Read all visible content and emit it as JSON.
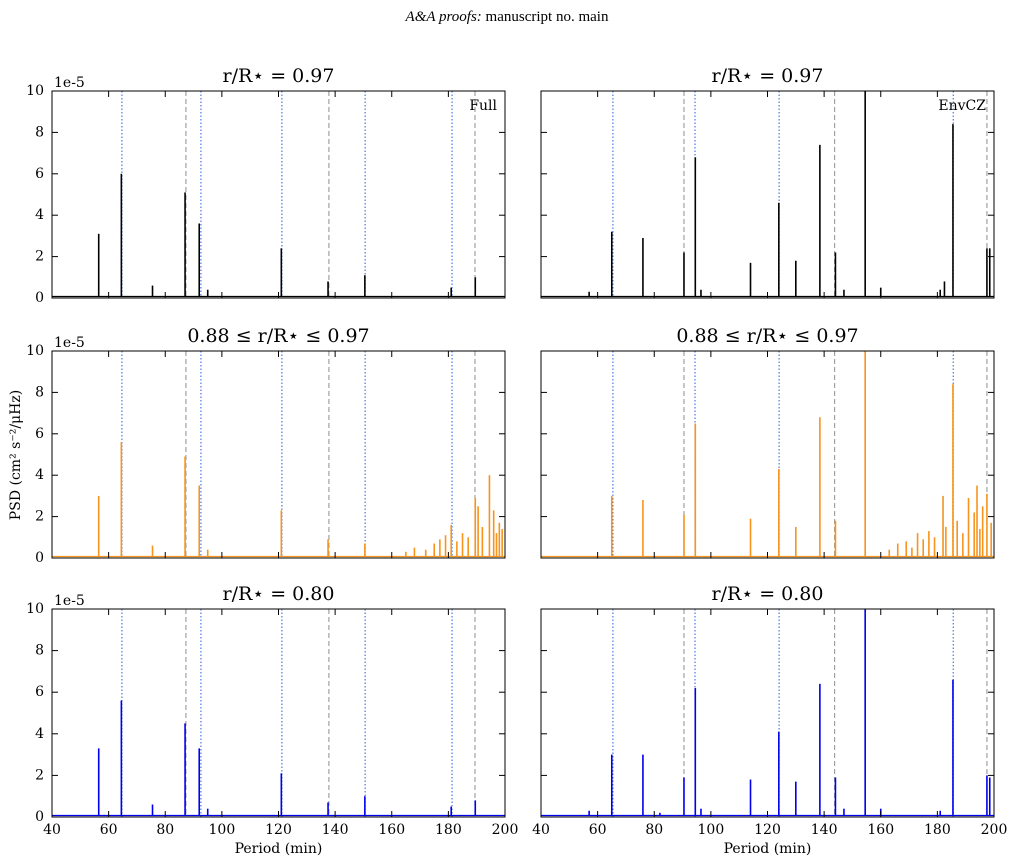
{
  "header": {
    "journal": "A&A proofs:",
    "text": "manuscript no. main"
  },
  "ylabel": "PSD (cm² s⁻²/μHz)",
  "chart_data": [
    {
      "type": "stem",
      "title": "r/R⋆ = 0.97",
      "annotation": "Full",
      "offset_text": "1e-5",
      "xlim": [
        40,
        200
      ],
      "xticks": [
        40,
        60,
        80,
        100,
        120,
        140,
        160,
        180,
        200
      ],
      "ylim": [
        0,
        10
      ],
      "yticks": [
        0,
        2,
        4,
        6,
        8,
        10
      ],
      "dotted_lines": {
        "color": "#3a6ee0",
        "x": [
          64.7,
          92.6,
          121.2,
          150.6,
          181.3
        ]
      },
      "dashed_lines": {
        "color": "#999999",
        "x": [
          87.3,
          137.8,
          189.4
        ]
      },
      "series": [
        {
          "color": "#000000",
          "x": [
            56.5,
            64.5,
            75.5,
            87,
            92,
            95,
            121,
            137.5,
            150.5,
            181,
            189.5
          ],
          "values": [
            3.1,
            6.0,
            0.6,
            5.1,
            3.6,
            0.4,
            2.4,
            0.8,
            1.1,
            0.5,
            1.0
          ]
        }
      ]
    },
    {
      "type": "stem",
      "title": "r/R⋆ = 0.97",
      "annotation": "EnvCZ",
      "xlim": [
        40,
        200
      ],
      "xticks": [
        40,
        60,
        80,
        100,
        120,
        140,
        160,
        180,
        200
      ],
      "ylim": [
        0,
        10
      ],
      "yticks": [
        0,
        2,
        4,
        6,
        8,
        10
      ],
      "dotted_lines": {
        "color": "#3a6ee0",
        "x": [
          65.4,
          94.4,
          124.1,
          185.6
        ]
      },
      "dashed_lines": {
        "color": "#999999",
        "x": [
          90.5,
          143.7,
          197.5
        ]
      },
      "series": [
        {
          "color": "#000000",
          "x": [
            57,
            65,
            76,
            90.5,
            94.5,
            96.5,
            114,
            124,
            130,
            138.5,
            144,
            147,
            154.5,
            160,
            181,
            182.5,
            185.5,
            197.5,
            198.5
          ],
          "values": [
            0.3,
            3.2,
            2.9,
            2.2,
            6.8,
            0.4,
            1.7,
            4.6,
            1.8,
            7.4,
            2.2,
            0.4,
            10,
            0.5,
            0.4,
            0.8,
            8.4,
            2.4,
            2.4
          ]
        }
      ]
    },
    {
      "type": "stem",
      "title": "0.88 ≤ r/R⋆ ≤ 0.97",
      "offset_text": "1e-5",
      "xlim": [
        40,
        200
      ],
      "xticks": [
        40,
        60,
        80,
        100,
        120,
        140,
        160,
        180,
        200
      ],
      "ylim": [
        0,
        10
      ],
      "yticks": [
        0,
        2,
        4,
        6,
        8,
        10
      ],
      "dotted_lines": {
        "color": "#3a6ee0",
        "x": [
          64.7,
          92.6,
          121.2,
          150.6,
          181.3
        ]
      },
      "dashed_lines": {
        "color": "#999999",
        "x": [
          87.3,
          137.8,
          189.4
        ]
      },
      "series": [
        {
          "color": "#f7941d",
          "x": [
            56.5,
            64.5,
            75.5,
            87,
            92,
            95,
            121,
            137.5,
            150.5,
            165,
            168,
            172,
            175,
            177,
            179,
            181,
            183,
            185,
            187,
            189.5,
            190.5,
            192,
            194.5,
            196,
            197,
            198,
            199
          ],
          "values": [
            3.0,
            5.6,
            0.6,
            4.9,
            3.5,
            0.4,
            2.3,
            0.9,
            0.7,
            0.3,
            0.5,
            0.4,
            0.7,
            0.9,
            1.1,
            1.6,
            0.8,
            1.2,
            1.0,
            2.9,
            2.5,
            1.5,
            4.0,
            2.3,
            1.2,
            1.7,
            1.4
          ]
        }
      ]
    },
    {
      "type": "stem",
      "title": "0.88 ≤ r/R⋆ ≤ 0.97",
      "xlim": [
        40,
        200
      ],
      "xticks": [
        40,
        60,
        80,
        100,
        120,
        140,
        160,
        180,
        200
      ],
      "ylim": [
        0,
        10
      ],
      "yticks": [
        0,
        2,
        4,
        6,
        8,
        10
      ],
      "dotted_lines": {
        "color": "#3a6ee0",
        "x": [
          65.4,
          94.4,
          124.1,
          185.6
        ]
      },
      "dashed_lines": {
        "color": "#999999",
        "x": [
          90.5,
          143.7,
          197.5
        ]
      },
      "series": [
        {
          "color": "#f7941d",
          "x": [
            65,
            76,
            90.5,
            94.5,
            114,
            124,
            130,
            138.5,
            144,
            154.5,
            163,
            166,
            169,
            171,
            173,
            175,
            177,
            179,
            182,
            183,
            185.5,
            187,
            189,
            191,
            193,
            194,
            195,
            196,
            197.5,
            199
          ],
          "values": [
            3.0,
            2.8,
            2.1,
            6.5,
            1.9,
            4.3,
            1.5,
            6.8,
            1.8,
            10,
            0.4,
            0.7,
            0.8,
            0.5,
            1.2,
            0.9,
            1.3,
            1.0,
            3.0,
            1.5,
            8.4,
            1.8,
            1.2,
            2.9,
            2.2,
            3.5,
            1.4,
            2.5,
            3.1,
            1.7
          ]
        }
      ]
    },
    {
      "type": "stem",
      "title": "r/R⋆ = 0.80",
      "offset_text": "1e-5",
      "xlabel": "Period (min)",
      "xlim": [
        40,
        200
      ],
      "xticks": [
        40,
        60,
        80,
        100,
        120,
        140,
        160,
        180,
        200
      ],
      "ylim": [
        0,
        10
      ],
      "yticks": [
        0,
        2,
        4,
        6,
        8,
        10
      ],
      "dotted_lines": {
        "color": "#3a6ee0",
        "x": [
          64.7,
          92.6,
          121.2,
          150.6,
          181.3
        ]
      },
      "dashed_lines": {
        "color": "#999999",
        "x": [
          87.3,
          137.8,
          189.4
        ]
      },
      "series": [
        {
          "color": "#0000ee",
          "x": [
            56.5,
            64.5,
            75.5,
            87,
            92,
            95,
            121,
            137.5,
            150.5,
            181,
            189.5
          ],
          "values": [
            3.3,
            5.6,
            0.6,
            4.5,
            3.3,
            0.4,
            2.1,
            0.7,
            1.0,
            0.5,
            0.8
          ]
        }
      ]
    },
    {
      "type": "stem",
      "title": "r/R⋆ = 0.80",
      "xlabel": "Period (min)",
      "xlim": [
        40,
        200
      ],
      "xticks": [
        40,
        60,
        80,
        100,
        120,
        140,
        160,
        180,
        200
      ],
      "ylim": [
        0,
        10
      ],
      "yticks": [
        0,
        2,
        4,
        6,
        8,
        10
      ],
      "dotted_lines": {
        "color": "#3a6ee0",
        "x": [
          65.4,
          94.4,
          124.1,
          185.6
        ]
      },
      "dashed_lines": {
        "color": "#999999",
        "x": [
          90.5,
          143.7,
          197.5
        ]
      },
      "series": [
        {
          "color": "#0000ee",
          "x": [
            57,
            65,
            76,
            82,
            90.5,
            94.5,
            96.5,
            114,
            124,
            130,
            138.5,
            144,
            147,
            154.5,
            160,
            181,
            185.5,
            197.5,
            198.5
          ],
          "values": [
            0.3,
            3.0,
            3.0,
            0.2,
            1.9,
            6.2,
            0.4,
            1.8,
            4.1,
            1.7,
            6.4,
            1.9,
            0.4,
            10,
            0.4,
            0.3,
            6.6,
            2.0,
            1.9
          ]
        }
      ]
    }
  ]
}
